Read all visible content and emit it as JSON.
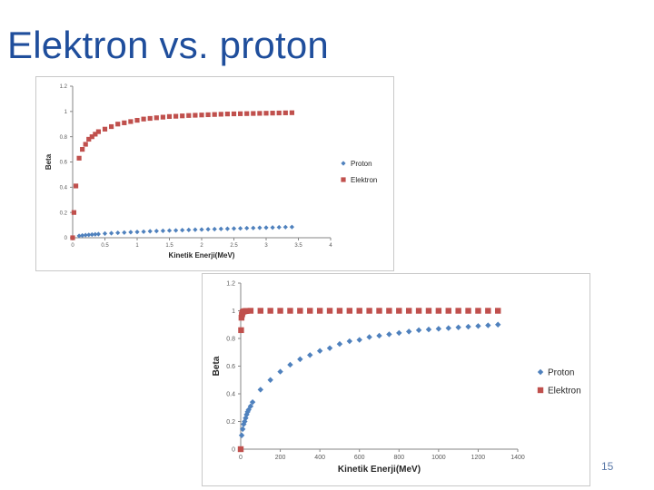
{
  "slide": {
    "title": "Elektron vs. proton",
    "page_number": "15"
  },
  "colors": {
    "title": "#1f4e9c",
    "proton": "#4f81bd",
    "elektron": "#c0504d",
    "axis": "#868686",
    "tick_text": "#595959"
  },
  "chart_data": [
    {
      "type": "scatter",
      "title": "",
      "xlabel": "Kinetik Enerji(MeV)",
      "ylabel": "Beta",
      "xlim": [
        0,
        4
      ],
      "ylim": [
        0,
        1.2
      ],
      "x_ticks": [
        "0",
        "0.5",
        "1",
        "1.5",
        "2",
        "2.5",
        "3",
        "3.5",
        "4"
      ],
      "y_ticks": [
        "0",
        "0.2",
        "0.4",
        "0.6",
        "0.8",
        "1",
        "1.2"
      ],
      "grid": false,
      "legend": "right",
      "series": [
        {
          "name": "Proton",
          "marker": "diamond",
          "x": [
            0.0,
            0.1,
            0.15,
            0.2,
            0.25,
            0.3,
            0.35,
            0.4,
            0.5,
            0.6,
            0.7,
            0.8,
            0.9,
            1.0,
            1.1,
            1.2,
            1.3,
            1.4,
            1.5,
            1.6,
            1.7,
            1.8,
            1.9,
            2.0,
            2.1,
            2.2,
            2.3,
            2.4,
            2.5,
            2.6,
            2.7,
            2.8,
            2.9,
            3.0,
            3.1,
            3.2,
            3.3,
            3.4
          ],
          "y": [
            0.0,
            0.015,
            0.018,
            0.021,
            0.023,
            0.025,
            0.027,
            0.029,
            0.033,
            0.036,
            0.039,
            0.041,
            0.044,
            0.046,
            0.048,
            0.051,
            0.053,
            0.055,
            0.057,
            0.058,
            0.06,
            0.062,
            0.064,
            0.065,
            0.067,
            0.068,
            0.07,
            0.071,
            0.073,
            0.074,
            0.076,
            0.077,
            0.079,
            0.08,
            0.081,
            0.083,
            0.084,
            0.085
          ]
        },
        {
          "name": "Elektron",
          "marker": "square",
          "x": [
            0.0,
            0.02,
            0.05,
            0.1,
            0.15,
            0.2,
            0.25,
            0.3,
            0.35,
            0.4,
            0.5,
            0.6,
            0.7,
            0.8,
            0.9,
            1.0,
            1.1,
            1.2,
            1.3,
            1.4,
            1.5,
            1.6,
            1.7,
            1.8,
            1.9,
            2.0,
            2.1,
            2.2,
            2.3,
            2.4,
            2.5,
            2.6,
            2.7,
            2.8,
            2.9,
            3.0,
            3.1,
            3.2,
            3.3,
            3.4
          ],
          "y": [
            0.0,
            0.2,
            0.41,
            0.63,
            0.7,
            0.74,
            0.78,
            0.8,
            0.82,
            0.84,
            0.86,
            0.88,
            0.9,
            0.91,
            0.92,
            0.93,
            0.94,
            0.945,
            0.95,
            0.955,
            0.96,
            0.962,
            0.965,
            0.968,
            0.97,
            0.972,
            0.974,
            0.976,
            0.978,
            0.98,
            0.981,
            0.982,
            0.983,
            0.984,
            0.985,
            0.986,
            0.987,
            0.988,
            0.989,
            0.99
          ]
        }
      ]
    },
    {
      "type": "scatter",
      "title": "",
      "xlabel": "Kinetik Enerji(MeV)",
      "ylabel": "Beta",
      "xlim": [
        0,
        1400
      ],
      "ylim": [
        0,
        1.2
      ],
      "x_ticks": [
        "0",
        "200",
        "400",
        "600",
        "800",
        "1000",
        "1200",
        "1400"
      ],
      "y_ticks": [
        "0",
        "0.2",
        "0.4",
        "0.6",
        "0.8",
        "1",
        "1.2"
      ],
      "grid": false,
      "legend": "right",
      "series": [
        {
          "name": "Proton",
          "marker": "diamond",
          "x": [
            0,
            5,
            10,
            15,
            20,
            25,
            30,
            35,
            40,
            50,
            60,
            100,
            150,
            200,
            250,
            300,
            350,
            400,
            450,
            500,
            550,
            600,
            650,
            700,
            750,
            800,
            850,
            900,
            950,
            1000,
            1050,
            1100,
            1150,
            1200,
            1250,
            1300
          ],
          "y": [
            0.0,
            0.1,
            0.145,
            0.18,
            0.2,
            0.225,
            0.25,
            0.27,
            0.285,
            0.31,
            0.34,
            0.43,
            0.5,
            0.56,
            0.61,
            0.65,
            0.68,
            0.71,
            0.73,
            0.76,
            0.78,
            0.79,
            0.81,
            0.82,
            0.83,
            0.84,
            0.85,
            0.86,
            0.865,
            0.87,
            0.875,
            0.88,
            0.885,
            0.89,
            0.895,
            0.9
          ]
        },
        {
          "name": "Elektron",
          "marker": "square",
          "x": [
            0,
            2,
            4,
            6,
            8,
            10,
            15,
            20,
            25,
            30,
            50,
            100,
            150,
            200,
            250,
            300,
            350,
            400,
            450,
            500,
            550,
            600,
            650,
            700,
            750,
            800,
            850,
            900,
            950,
            1000,
            1050,
            1100,
            1150,
            1200,
            1250,
            1300
          ],
          "y": [
            0.0,
            0.86,
            0.95,
            0.97,
            0.98,
            0.99,
            0.995,
            0.997,
            0.998,
            0.999,
            1.0,
            1.0,
            1.0,
            1.0,
            1.0,
            1.0,
            1.0,
            1.0,
            1.0,
            1.0,
            1.0,
            1.0,
            1.0,
            1.0,
            1.0,
            1.0,
            1.0,
            1.0,
            1.0,
            1.0,
            1.0,
            1.0,
            1.0,
            1.0,
            1.0,
            1.0
          ]
        }
      ]
    }
  ]
}
